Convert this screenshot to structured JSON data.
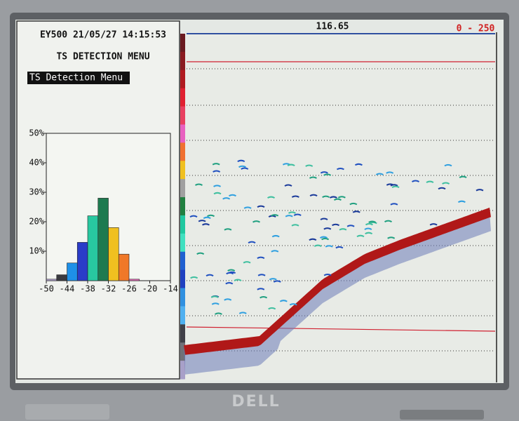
{
  "screen": {
    "status": "EY500 21/05/27 14:15:53",
    "menu_title": "TS DETECTION MENU",
    "menu_item": "TS Detection Menu",
    "depth_readout": "116.65",
    "range": "0 -  250",
    "brand": "DELL"
  },
  "chart_data": {
    "type": "histogram",
    "bins": [
      -50,
      -47,
      -44,
      -41,
      -38,
      -35,
      -32,
      -29,
      -26,
      -23
    ],
    "values": [
      0.5,
      2,
      6,
      13,
      22,
      28,
      18,
      9,
      0.5
    ],
    "colors": [
      "#b8a8d8",
      "#3a3a40",
      "#1e90e8",
      "#2a3cc8",
      "#28c8a0",
      "#1e7a50",
      "#f0c020",
      "#f07828",
      "#f070c0"
    ],
    "xlim": [
      -50,
      -14
    ],
    "xticks": [
      -50,
      -44,
      -38,
      -32,
      -26,
      -20,
      -14
    ],
    "ylim": [
      0,
      50
    ],
    "yticks": [
      {
        "value": 10,
        "label": "10%"
      },
      {
        "value": 20,
        "label": "20%"
      },
      {
        "value": 30,
        "label": "30%"
      },
      {
        "value": 40,
        "label": "40%"
      },
      {
        "value": 50,
        "label": "50%"
      }
    ]
  }
}
